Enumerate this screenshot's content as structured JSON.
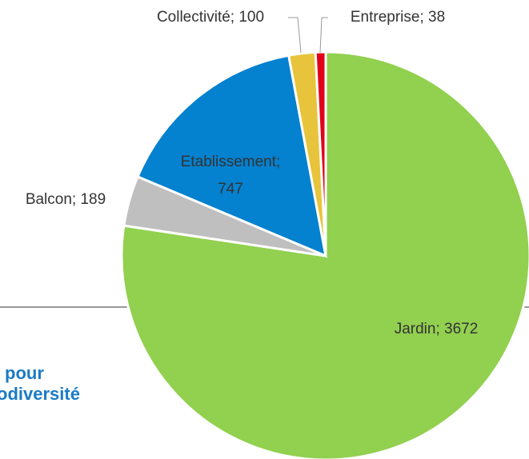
{
  "chart_data": {
    "type": "pie",
    "categories": [
      "Jardin",
      "Balcon",
      "Etablissement",
      "Collectivité",
      "Entreprise"
    ],
    "values": [
      3672,
      189,
      747,
      100,
      38
    ],
    "value_labels": [
      "Jardin; 3672",
      "Balcon; 189",
      "Etablissement; 747",
      "Collectivité; 100",
      "Entreprise; 38"
    ],
    "colors": [
      "#92d050",
      "#bfbfbf",
      "#0481cf",
      "#e8c43c",
      "#e0001a"
    ]
  },
  "logo": [
    "pour",
    "odiversité"
  ]
}
